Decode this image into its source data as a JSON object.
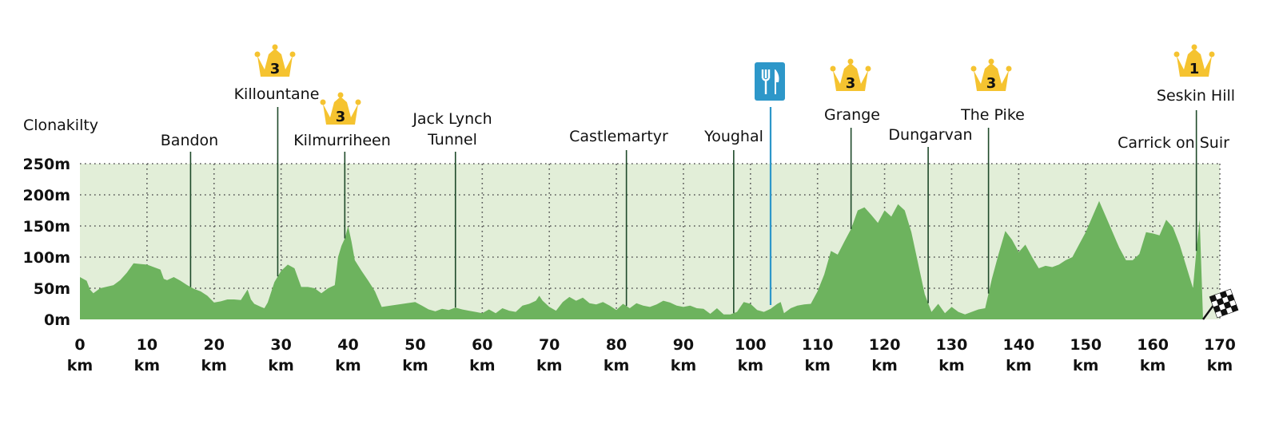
{
  "chart_data": {
    "type": "area",
    "title": "",
    "xlabel": "",
    "ylabel": "",
    "xlim": [
      0,
      170
    ],
    "ylim": [
      0,
      250
    ],
    "grid": true,
    "x_ticks": [
      0,
      10,
      20,
      30,
      40,
      50,
      60,
      70,
      80,
      90,
      100,
      110,
      120,
      130,
      140,
      150,
      160,
      170
    ],
    "x_tick_unit": "km",
    "y_ticks": [
      {
        "value": 0,
        "label": "0m"
      },
      {
        "value": 50,
        "label": "50m"
      },
      {
        "value": 100,
        "label": "100m"
      },
      {
        "value": 150,
        "label": "150m"
      },
      {
        "value": 200,
        "label": "200m"
      },
      {
        "value": 250,
        "label": "250m"
      }
    ],
    "colors": {
      "fill": "#6db35e",
      "band": "#e2eed8",
      "grid": "#555555",
      "marker_line": "#1f4a2a",
      "feed_line": "#2d97c9",
      "feed_icon": "#2d97c9",
      "crown": "#f5c330"
    },
    "series": [
      {
        "x": [
          0,
          1,
          1.5,
          2,
          3,
          5,
          6,
          7,
          8,
          9,
          10,
          11,
          12,
          12.5,
          13,
          14,
          15,
          16,
          17,
          18,
          19,
          20,
          21,
          22,
          23,
          24,
          25,
          25.5,
          26,
          27,
          27.5,
          28,
          29,
          30,
          31,
          32,
          33,
          34,
          35,
          36,
          37,
          38,
          38.5,
          39,
          39.5,
          40,
          40.5,
          41,
          42,
          43,
          44,
          45,
          50,
          51,
          52,
          53,
          54,
          55,
          56,
          57,
          58,
          59,
          60,
          61,
          62,
          63,
          64,
          65,
          66,
          67,
          68,
          68.5,
          69,
          70,
          71,
          72,
          73,
          74,
          75,
          76,
          77,
          78,
          79,
          80,
          81,
          82,
          83,
          84,
          85,
          86,
          87,
          88,
          89,
          90,
          91,
          92,
          93,
          94,
          95,
          96,
          97,
          98,
          99,
          100,
          101,
          102,
          103,
          104,
          104.5,
          105,
          106,
          107,
          108,
          109,
          110,
          111,
          112,
          113,
          114,
          115,
          116,
          117,
          118,
          119,
          120,
          121,
          122,
          123,
          124,
          125,
          126,
          127,
          128,
          129,
          130,
          131,
          132,
          133,
          134,
          135,
          136,
          137,
          138,
          139,
          140,
          141,
          142,
          143,
          144,
          145,
          146,
          147,
          148,
          149,
          150,
          151,
          152,
          153,
          154,
          155,
          156,
          157,
          158,
          159,
          160,
          161,
          162,
          163,
          164,
          165,
          166,
          166.5,
          167,
          167.5
        ],
        "values": [
          68,
          62,
          48,
          42,
          50,
          55,
          63,
          75,
          90,
          89,
          88,
          84,
          80,
          65,
          63,
          68,
          62,
          55,
          49,
          45,
          38,
          27,
          29,
          32,
          32,
          31,
          48,
          32,
          25,
          20,
          18,
          27,
          60,
          78,
          88,
          82,
          52,
          52,
          50,
          42,
          50,
          55,
          100,
          118,
          130,
          150,
          125,
          95,
          78,
          62,
          45,
          20,
          28,
          22,
          16,
          13,
          17,
          15,
          19,
          16,
          14,
          12,
          10,
          16,
          10,
          18,
          14,
          12,
          22,
          25,
          30,
          38,
          30,
          20,
          14,
          28,
          36,
          30,
          35,
          26,
          24,
          28,
          22,
          15,
          25,
          18,
          26,
          22,
          20,
          24,
          30,
          27,
          22,
          20,
          22,
          18,
          17,
          9,
          18,
          8,
          8,
          12,
          28,
          25,
          15,
          12,
          17,
          25,
          28,
          10,
          18,
          22,
          24,
          25,
          45,
          72,
          110,
          104,
          125,
          145,
          175,
          180,
          168,
          155,
          175,
          165,
          185,
          175,
          140,
          90,
          40,
          12,
          25,
          10,
          20,
          12,
          8,
          12,
          16,
          18,
          65,
          105,
          142,
          128,
          108,
          120,
          100,
          82,
          86,
          84,
          88,
          95,
          100,
          120,
          140,
          165,
          190,
          165,
          140,
          115,
          95,
          95,
          105,
          140,
          138,
          135,
          160,
          148,
          120,
          85,
          50,
          110,
          160,
          0
        ]
      }
    ],
    "annotations": [
      {
        "label": "Clonakilty",
        "km": 0
      },
      {
        "label": "Bandon",
        "km": 16.5
      },
      {
        "label": "Killountane",
        "km": 29.5,
        "kom": "3"
      },
      {
        "label": "Kilmurriheen",
        "km": 39.5,
        "kom": "3"
      },
      {
        "label": "Jack Lynch",
        "label2": "Tunnel",
        "km": 56
      },
      {
        "label": "Castlemartyr",
        "km": 81.5
      },
      {
        "label": "Youghal",
        "km": 97.5
      },
      {
        "label": "",
        "km": 103,
        "feed": true
      },
      {
        "label": "Grange",
        "km": 115,
        "kom": "3"
      },
      {
        "label": "Dungarvan",
        "km": 126.5
      },
      {
        "label": "The Pike",
        "km": 135.5,
        "kom": "3"
      },
      {
        "label": "Carrick on Suir",
        "km": 164
      },
      {
        "label": "Seskin Hill",
        "km": 166.5,
        "kom": "1"
      }
    ]
  }
}
